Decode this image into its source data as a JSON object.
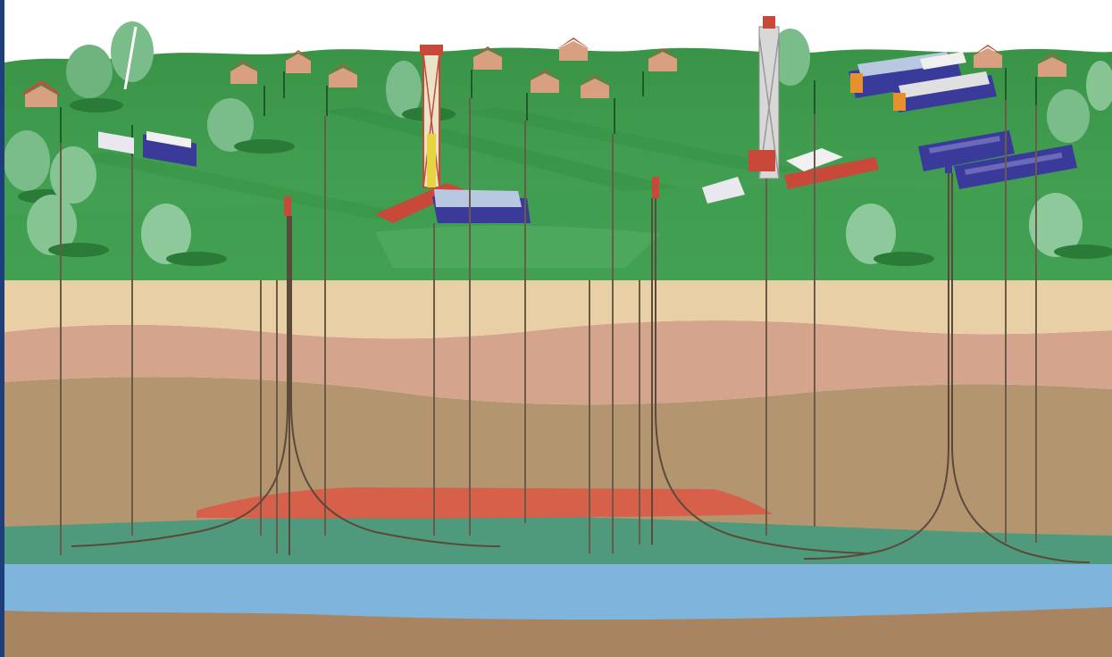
{
  "palette": {
    "sky": "#ffffff",
    "left_edge": "#1f3f7a",
    "grass_light": "#3d9a4d",
    "grass_dark": "#2f8a3f",
    "grass_shadow": "#2a7a38",
    "tree_light": "#8bc79a",
    "tree_dark": "#5ea470",
    "house_wall": "#d8a080",
    "house_roof": "#c0503a",
    "layer_sand": "#e8cfa6",
    "layer_pink": "#d4a48c",
    "layer_tan": "#b39670",
    "layer_red": "#d6604a",
    "layer_green": "#4f9a7c",
    "layer_blue": "#7fb4dc",
    "layer_brown": "#a88560",
    "well_line": "#6a5a48",
    "rig_red": "#c8483a",
    "rig_steel": "#d8d8d8",
    "truck_blue": "#3a3a9a",
    "truck_white": "#f0f0f0"
  },
  "scene_elements": {
    "surface": "grassy-hills",
    "subsurface_layers": [
      "sand",
      "pink",
      "tan",
      "red-target",
      "green",
      "blue-aquifer",
      "brown-base"
    ],
    "drill_rigs": 3,
    "horizontal_wells": 4,
    "vertical_wells": 17
  }
}
